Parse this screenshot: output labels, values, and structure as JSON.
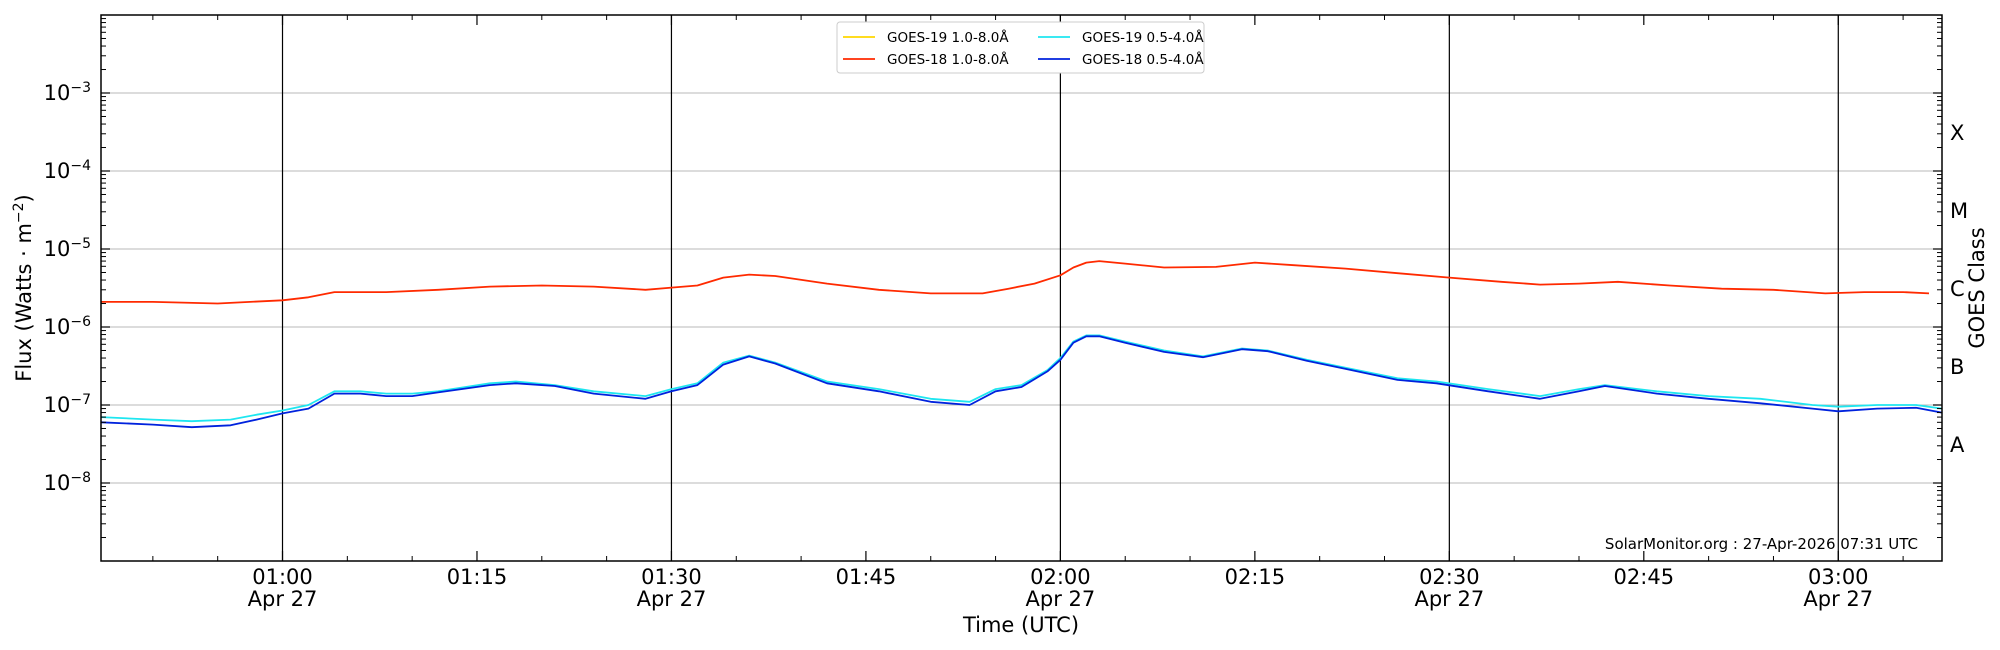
{
  "chart_data": {
    "type": "line",
    "xlabel": "Time (UTC)",
    "ylabel_main": "Flux (Watts · m",
    "ylabel_sup": "−2",
    "ylabel_close": ")",
    "y2label": "GOES Class",
    "yscale": "log",
    "xlim": [
      "00:46",
      "03:08"
    ],
    "ylim": [
      1e-09,
      0.01
    ],
    "grid": "horizontal",
    "legend_placement": "top-center",
    "x_ticks": [
      {
        "t": "01:00",
        "label": "01:00",
        "sub": "Apr 27",
        "vline": true
      },
      {
        "t": "01:15",
        "label": "01:15",
        "sub": "",
        "vline": false
      },
      {
        "t": "01:30",
        "label": "01:30",
        "sub": "Apr 27",
        "vline": true
      },
      {
        "t": "01:45",
        "label": "01:45",
        "sub": "",
        "vline": false
      },
      {
        "t": "02:00",
        "label": "02:00",
        "sub": "Apr 27",
        "vline": true
      },
      {
        "t": "02:15",
        "label": "02:15",
        "sub": "",
        "vline": false
      },
      {
        "t": "02:30",
        "label": "02:30",
        "sub": "Apr 27",
        "vline": true
      },
      {
        "t": "02:45",
        "label": "02:45",
        "sub": "",
        "vline": false
      },
      {
        "t": "03:00",
        "label": "03:00",
        "sub": "Apr 27",
        "vline": true
      }
    ],
    "y_ticks": [
      {
        "value": 1e-08,
        "base": "10",
        "exp": "−8"
      },
      {
        "value": 1e-07,
        "base": "10",
        "exp": "−7"
      },
      {
        "value": 1e-06,
        "base": "10",
        "exp": "−6"
      },
      {
        "value": 1e-05,
        "base": "10",
        "exp": "−5"
      },
      {
        "value": 0.0001,
        "base": "10",
        "exp": "−4"
      },
      {
        "value": 0.001,
        "base": "10",
        "exp": "−3"
      }
    ],
    "goes_classes": [
      {
        "label": "A",
        "value": 3.16e-08
      },
      {
        "label": "B",
        "value": 3.16e-07
      },
      {
        "label": "C",
        "value": 3.16e-06
      },
      {
        "label": "M",
        "value": 3.16e-05
      },
      {
        "label": "X",
        "value": 0.000316
      }
    ],
    "credit": "SolarMonitor.org : 27-Apr-2026 07:31 UTC",
    "series": [
      {
        "name": "GOES-19 1.0-8.0Å",
        "color": "#ffd700",
        "points": []
      },
      {
        "name": "GOES-18 1.0-8.0Å",
        "color": "#ff2a00",
        "points": [
          [
            "00:46",
            2.1e-06
          ],
          [
            "00:50",
            2.1e-06
          ],
          [
            "00:55",
            2e-06
          ],
          [
            "01:00",
            2.2e-06
          ],
          [
            "01:02",
            2.4e-06
          ],
          [
            "01:04",
            2.8e-06
          ],
          [
            "01:08",
            2.8e-06
          ],
          [
            "01:12",
            3e-06
          ],
          [
            "01:16",
            3.3e-06
          ],
          [
            "01:20",
            3.4e-06
          ],
          [
            "01:24",
            3.3e-06
          ],
          [
            "01:28",
            3e-06
          ],
          [
            "01:30",
            3.2e-06
          ],
          [
            "01:32",
            3.4e-06
          ],
          [
            "01:34",
            4.3e-06
          ],
          [
            "01:36",
            4.7e-06
          ],
          [
            "01:38",
            4.5e-06
          ],
          [
            "01:42",
            3.6e-06
          ],
          [
            "01:46",
            3e-06
          ],
          [
            "01:50",
            2.7e-06
          ],
          [
            "01:54",
            2.7e-06
          ],
          [
            "01:56",
            3.1e-06
          ],
          [
            "01:58",
            3.6e-06
          ],
          [
            "02:00",
            4.6e-06
          ],
          [
            "02:01",
            5.8e-06
          ],
          [
            "02:02",
            6.7e-06
          ],
          [
            "02:03",
            7e-06
          ],
          [
            "02:05",
            6.5e-06
          ],
          [
            "02:08",
            5.8e-06
          ],
          [
            "02:12",
            5.9e-06
          ],
          [
            "02:15",
            6.7e-06
          ],
          [
            "02:18",
            6.2e-06
          ],
          [
            "02:22",
            5.6e-06
          ],
          [
            "02:26",
            4.9e-06
          ],
          [
            "02:30",
            4.3e-06
          ],
          [
            "02:34",
            3.8e-06
          ],
          [
            "02:37",
            3.5e-06
          ],
          [
            "02:40",
            3.6e-06
          ],
          [
            "02:43",
            3.8e-06
          ],
          [
            "02:47",
            3.4e-06
          ],
          [
            "02:51",
            3.1e-06
          ],
          [
            "02:55",
            3e-06
          ],
          [
            "02:59",
            2.7e-06
          ],
          [
            "03:02",
            2.8e-06
          ],
          [
            "03:05",
            2.8e-06
          ],
          [
            "03:07",
            2.7e-06
          ]
        ]
      },
      {
        "name": "GOES-19 0.5-4.0Å",
        "color": "#1ee6f0",
        "points": [
          [
            "00:46",
            7e-08
          ],
          [
            "00:50",
            6.5e-08
          ],
          [
            "00:53",
            6.2e-08
          ],
          [
            "00:56",
            6.5e-08
          ],
          [
            "00:58",
            7.5e-08
          ],
          [
            "01:00",
            8.5e-08
          ],
          [
            "01:02",
            1e-07
          ],
          [
            "01:04",
            1.5e-07
          ],
          [
            "01:06",
            1.5e-07
          ],
          [
            "01:08",
            1.4e-07
          ],
          [
            "01:10",
            1.4e-07
          ],
          [
            "01:12",
            1.5e-07
          ],
          [
            "01:16",
            1.9e-07
          ],
          [
            "01:18",
            2e-07
          ],
          [
            "01:21",
            1.8e-07
          ],
          [
            "01:24",
            1.5e-07
          ],
          [
            "01:28",
            1.3e-07
          ],
          [
            "01:30",
            1.6e-07
          ],
          [
            "01:32",
            1.9e-07
          ],
          [
            "01:34",
            3.5e-07
          ],
          [
            "01:36",
            4.3e-07
          ],
          [
            "01:38",
            3.5e-07
          ],
          [
            "01:42",
            2e-07
          ],
          [
            "01:46",
            1.6e-07
          ],
          [
            "01:50",
            1.2e-07
          ],
          [
            "01:53",
            1.1e-07
          ],
          [
            "01:55",
            1.6e-07
          ],
          [
            "01:57",
            1.8e-07
          ],
          [
            "01:59",
            2.8e-07
          ],
          [
            "02:00",
            4e-07
          ],
          [
            "02:01",
            6.5e-07
          ],
          [
            "02:02",
            7.8e-07
          ],
          [
            "02:03",
            7.8e-07
          ],
          [
            "02:05",
            6.5e-07
          ],
          [
            "02:08",
            5e-07
          ],
          [
            "02:11",
            4.2e-07
          ],
          [
            "02:14",
            5.3e-07
          ],
          [
            "02:16",
            5e-07
          ],
          [
            "02:19",
            3.8e-07
          ],
          [
            "02:22",
            3e-07
          ],
          [
            "02:26",
            2.2e-07
          ],
          [
            "02:29",
            2e-07
          ],
          [
            "02:33",
            1.6e-07
          ],
          [
            "02:37",
            1.3e-07
          ],
          [
            "02:40",
            1.6e-07
          ],
          [
            "02:42",
            1.8e-07
          ],
          [
            "02:46",
            1.5e-07
          ],
          [
            "02:50",
            1.3e-07
          ],
          [
            "02:54",
            1.2e-07
          ],
          [
            "02:58",
            1e-07
          ],
          [
            "03:00",
            9.5e-08
          ],
          [
            "03:03",
            1e-07
          ],
          [
            "03:06",
            1e-07
          ],
          [
            "03:08",
            9e-08
          ]
        ]
      },
      {
        "name": "GOES-18 0.5-4.0Å",
        "color": "#0022dd",
        "points": [
          [
            "00:46",
            6e-08
          ],
          [
            "00:50",
            5.6e-08
          ],
          [
            "00:53",
            5.2e-08
          ],
          [
            "00:56",
            5.5e-08
          ],
          [
            "00:58",
            6.5e-08
          ],
          [
            "01:00",
            7.8e-08
          ],
          [
            "01:02",
            9e-08
          ],
          [
            "01:04",
            1.4e-07
          ],
          [
            "01:06",
            1.4e-07
          ],
          [
            "01:08",
            1.3e-07
          ],
          [
            "01:10",
            1.3e-07
          ],
          [
            "01:12",
            1.45e-07
          ],
          [
            "01:16",
            1.8e-07
          ],
          [
            "01:18",
            1.9e-07
          ],
          [
            "01:21",
            1.75e-07
          ],
          [
            "01:24",
            1.4e-07
          ],
          [
            "01:28",
            1.2e-07
          ],
          [
            "01:30",
            1.5e-07
          ],
          [
            "01:32",
            1.8e-07
          ],
          [
            "01:34",
            3.3e-07
          ],
          [
            "01:36",
            4.2e-07
          ],
          [
            "01:38",
            3.4e-07
          ],
          [
            "01:42",
            1.9e-07
          ],
          [
            "01:46",
            1.5e-07
          ],
          [
            "01:50",
            1.1e-07
          ],
          [
            "01:53",
            1e-07
          ],
          [
            "01:55",
            1.5e-07
          ],
          [
            "01:57",
            1.7e-07
          ],
          [
            "01:59",
            2.7e-07
          ],
          [
            "02:00",
            3.8e-07
          ],
          [
            "02:01",
            6.3e-07
          ],
          [
            "02:02",
            7.6e-07
          ],
          [
            "02:03",
            7.6e-07
          ],
          [
            "02:05",
            6.3e-07
          ],
          [
            "02:08",
            4.8e-07
          ],
          [
            "02:11",
            4.1e-07
          ],
          [
            "02:14",
            5.2e-07
          ],
          [
            "02:16",
            4.9e-07
          ],
          [
            "02:19",
            3.7e-07
          ],
          [
            "02:22",
            2.9e-07
          ],
          [
            "02:26",
            2.1e-07
          ],
          [
            "02:29",
            1.9e-07
          ],
          [
            "02:33",
            1.5e-07
          ],
          [
            "02:37",
            1.2e-07
          ],
          [
            "02:40",
            1.5e-07
          ],
          [
            "02:42",
            1.75e-07
          ],
          [
            "02:46",
            1.4e-07
          ],
          [
            "02:50",
            1.2e-07
          ],
          [
            "02:54",
            1.05e-07
          ],
          [
            "02:58",
            9e-08
          ],
          [
            "03:00",
            8.3e-08
          ],
          [
            "03:03",
            9e-08
          ],
          [
            "03:06",
            9.2e-08
          ],
          [
            "03:08",
            8e-08
          ]
        ]
      }
    ]
  }
}
